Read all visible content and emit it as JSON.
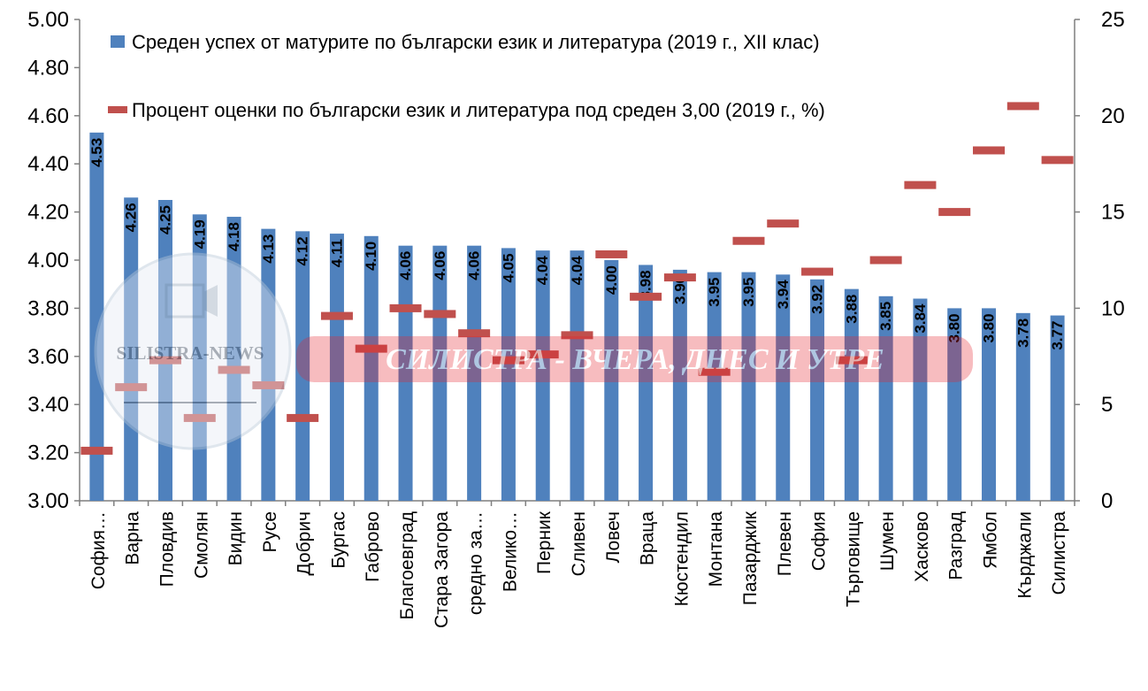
{
  "chart_data": {
    "type": "bar",
    "categories": [
      "София…",
      "Варна",
      "Пловдив",
      "Смолян",
      "Видин",
      "Русе",
      "Добрич",
      "Бургас",
      "Габрово",
      "Благоевград",
      "Стара Загора",
      "средно за…",
      "Велико…",
      "Перник",
      "Сливен",
      "Ловеч",
      "Враца",
      "Кюстендил",
      "Монтана",
      "Пазарджик",
      "Плевен",
      "София",
      "Търговище",
      "Шумен",
      "Хасково",
      "Разград",
      "Ямбол",
      "Кърджали",
      "Силистра"
    ],
    "series": [
      {
        "name": "Среден успех от матурите по български език и литература (2019 г., XII клас)",
        "type": "bar",
        "axis": "left",
        "color": "#4f81bd",
        "values": [
          4.53,
          4.26,
          4.25,
          4.19,
          4.18,
          4.13,
          4.12,
          4.11,
          4.1,
          4.06,
          4.06,
          4.06,
          4.05,
          4.04,
          4.04,
          4.0,
          3.98,
          3.96,
          3.95,
          3.95,
          3.94,
          3.92,
          3.88,
          3.85,
          3.84,
          3.8,
          3.8,
          3.78,
          3.77
        ],
        "value_labels": [
          "4.53",
          "4.26",
          "4.25",
          "4.19",
          "4.18",
          "4.13",
          "4.12",
          "4.11",
          "4.10",
          "4.06",
          "4.06",
          "4.06",
          "4.05",
          "4.04",
          "4.04",
          "4.00",
          "3.98",
          "3.96",
          "3.95",
          "3.95",
          "3.94",
          "3.92",
          "3.88",
          "3.85",
          "3.84",
          "3.80",
          "3.80",
          "3.78",
          "3.77"
        ]
      },
      {
        "name": "Процент оценки по български език и литература под среден 3,00 (2019 г., %)",
        "type": "marker",
        "axis": "right",
        "color": "#c0504d",
        "values": [
          2.6,
          5.9,
          7.3,
          4.3,
          6.8,
          6.0,
          4.3,
          9.6,
          7.9,
          10.0,
          9.7,
          8.7,
          7.3,
          7.6,
          8.6,
          12.8,
          10.6,
          11.6,
          6.7,
          13.5,
          14.4,
          11.9,
          7.3,
          12.5,
          16.4,
          15.0,
          18.2,
          20.5,
          17.7
        ]
      }
    ],
    "y_left": {
      "min": 3.0,
      "max": 5.0,
      "ticks": [
        "3.00",
        "3.20",
        "3.40",
        "3.60",
        "3.80",
        "4.00",
        "4.20",
        "4.40",
        "4.60",
        "4.80",
        "5.00"
      ]
    },
    "y_right": {
      "min": 0,
      "max": 25,
      "ticks": [
        "0",
        "5",
        "10",
        "15",
        "20",
        "25"
      ]
    },
    "legend": "top",
    "grid": false
  },
  "watermark": {
    "logo_text": "SILISTRA-NEWS",
    "banner_text": "СИЛИСТРА - ВЧЕРА, ДНЕС И УТРЕ"
  }
}
